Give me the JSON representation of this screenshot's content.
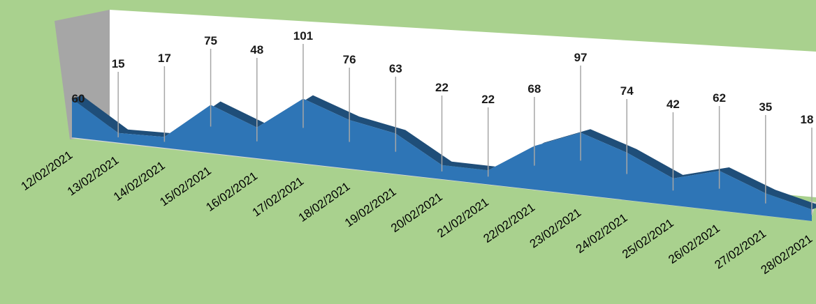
{
  "chart_data": {
    "type": "area",
    "three_d": true,
    "categories": [
      "12/02/2021",
      "13/02/2021",
      "14/02/2021",
      "15/02/2021",
      "16/02/2021",
      "17/02/2021",
      "18/02/2021",
      "19/02/2021",
      "20/02/2021",
      "21/02/2021",
      "22/02/2021",
      "23/02/2021",
      "24/02/2021",
      "25/02/2021",
      "26/02/2021",
      "27/02/2021",
      "28/02/2021"
    ],
    "series": [
      {
        "values": [
          60,
          15,
          17,
          75,
          48,
          101,
          76,
          63,
          22,
          22,
          68,
          97,
          74,
          42,
          62,
          35,
          18
        ]
      }
    ],
    "data_labels": [
      "60",
      "15",
      "17",
      "75",
      "48",
      "101",
      "76",
      "63",
      "22",
      "22",
      "68",
      "97",
      "74",
      "42",
      "62",
      "35",
      "18"
    ],
    "title": "",
    "xlabel": "",
    "ylabel": "",
    "ylim": [
      0,
      110
    ],
    "grid": false,
    "legend": "none",
    "colors": {
      "background": "#a9d18e",
      "plot_back_wall": "#ffffff",
      "side_wall": "#a6a6a6",
      "floor": "#d9d9d9",
      "area_front": "#2e75b6",
      "area_top": "#1f4e79",
      "leader_line": "#a6a6a6"
    }
  }
}
